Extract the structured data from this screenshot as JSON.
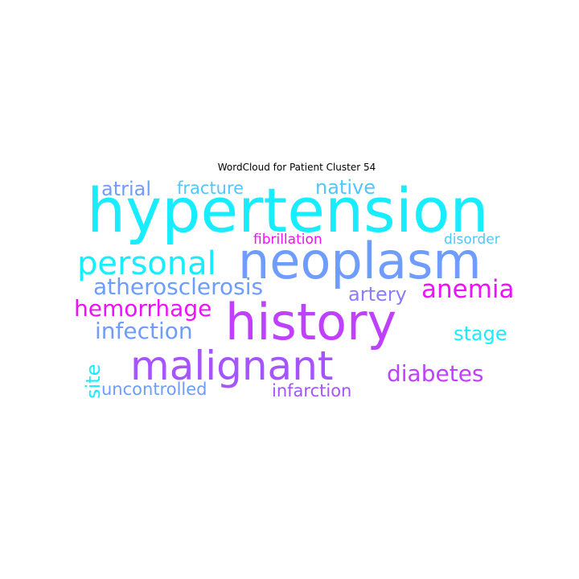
{
  "chart_data": {
    "type": "wordcloud",
    "title": "WordCloud for Patient Cluster 54",
    "words": [
      {
        "text": "hypertension",
        "weight": 1.0,
        "color": "#18EDFF"
      },
      {
        "text": "neoplasm",
        "weight": 0.82,
        "color": "#6E9CFF"
      },
      {
        "text": "history",
        "weight": 0.8,
        "color": "#C040FF"
      },
      {
        "text": "malignant",
        "weight": 0.6,
        "color": "#A554FF"
      },
      {
        "text": "personal",
        "weight": 0.46,
        "color": "#18EDFF"
      },
      {
        "text": "atherosclerosis",
        "weight": 0.36,
        "color": "#6E9CFF"
      },
      {
        "text": "anemia",
        "weight": 0.34,
        "color": "#F010FF"
      },
      {
        "text": "hemorrhage",
        "weight": 0.3,
        "color": "#F010FF"
      },
      {
        "text": "diabetes",
        "weight": 0.3,
        "color": "#C040FF"
      },
      {
        "text": "infection",
        "weight": 0.28,
        "color": "#6E9CFF"
      },
      {
        "text": "atrial",
        "weight": 0.26,
        "color": "#6E9CFF"
      },
      {
        "text": "native",
        "weight": 0.26,
        "color": "#4FC7FF"
      },
      {
        "text": "stage",
        "weight": 0.26,
        "color": "#18EDFF"
      },
      {
        "text": "artery",
        "weight": 0.25,
        "color": "#8A7CFF"
      },
      {
        "text": "fracture",
        "weight": 0.24,
        "color": "#4FC7FF"
      },
      {
        "text": "site",
        "weight": 0.23,
        "color": "#18EDFF"
      },
      {
        "text": "uncontrolled",
        "weight": 0.2,
        "color": "#6E9CFF"
      },
      {
        "text": "infarction",
        "weight": 0.2,
        "color": "#A554FF"
      },
      {
        "text": "fibrillation",
        "weight": 0.19,
        "color": "#F010FF"
      },
      {
        "text": "disorder",
        "weight": 0.19,
        "color": "#4FC7FF"
      }
    ]
  }
}
